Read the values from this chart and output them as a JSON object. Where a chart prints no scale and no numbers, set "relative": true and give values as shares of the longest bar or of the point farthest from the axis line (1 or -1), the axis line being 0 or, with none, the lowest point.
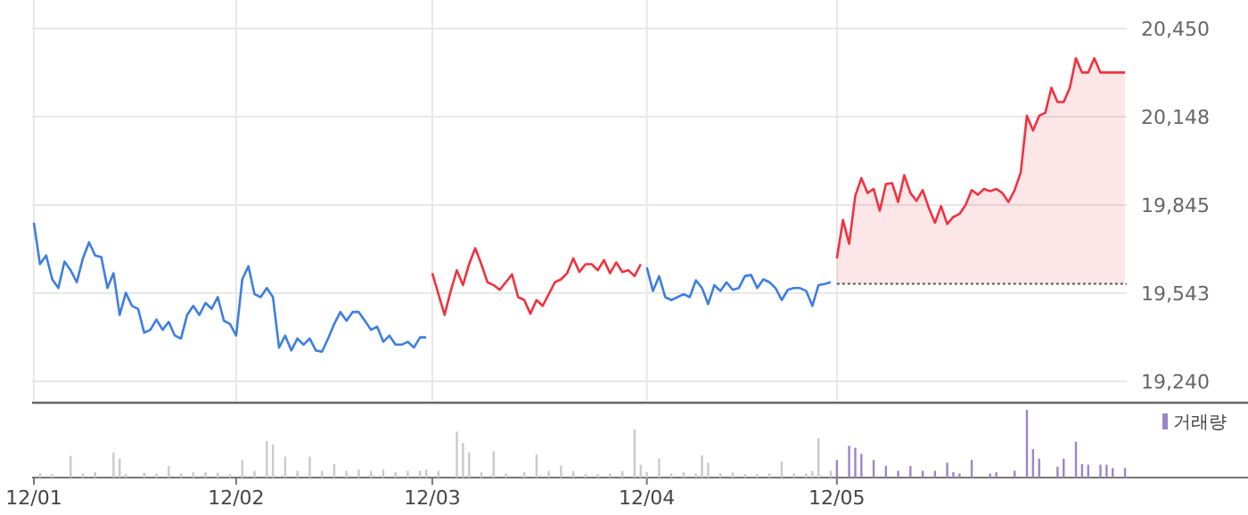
{
  "chart_data": [
    {
      "type": "line",
      "ylim": [
        19173,
        20450
      ],
      "categories": [
        null,
        null,
        null,
        null,
        null,
        null,
        null,
        null,
        null,
        null,
        null,
        null,
        null,
        null,
        null,
        null,
        null,
        null,
        null,
        null,
        null,
        null,
        null,
        null,
        null,
        null,
        null,
        null,
        null,
        null,
        null,
        null,
        null,
        null,
        null,
        null,
        null,
        null,
        null,
        null,
        null,
        null,
        null,
        null,
        null,
        null,
        null,
        null,
        null,
        null,
        null,
        null,
        null,
        null,
        null,
        null,
        null,
        null,
        null,
        null,
        null,
        null,
        null,
        null,
        null,
        null,
        null,
        null,
        null,
        null,
        null,
        null,
        null,
        null,
        null,
        null,
        null,
        null,
        null,
        null,
        null,
        null,
        null,
        null,
        null,
        null,
        null,
        null,
        null,
        null,
        null,
        null,
        null,
        null,
        null,
        null,
        null,
        null,
        null,
        null,
        null,
        null,
        null,
        null,
        null,
        null,
        null,
        null,
        null,
        null,
        null,
        null,
        null,
        null,
        null,
        null,
        null,
        null,
        null,
        null,
        null,
        null,
        null,
        null,
        null,
        null,
        null,
        null,
        null,
        null,
        null,
        null,
        null,
        null,
        null,
        null,
        null,
        null,
        null,
        null,
        null,
        null,
        null,
        null,
        null,
        null,
        null,
        null,
        null,
        null,
        null,
        null,
        null,
        null,
        null,
        null,
        null,
        null,
        null,
        null,
        null,
        null,
        null,
        null,
        null,
        null,
        null,
        null,
        null,
        null,
        null,
        null,
        null,
        null,
        null,
        null,
        null,
        null,
        null
      ],
      "yticks": [
        {
          "value": 19240,
          "label": "19,240"
        },
        {
          "value": 19542.5,
          "label": "19,543"
        },
        {
          "value": 19845,
          "label": "19,845"
        },
        {
          "value": 20147.5,
          "label": "20,148"
        },
        {
          "value": 20450,
          "label": "20,450"
        }
      ],
      "tick_labels": "y",
      "grid": true,
      "ref_lines": [
        {
          "axis": "y",
          "value": 19575,
          "color": "#555555",
          "line_style": "dotted"
        }
      ],
      "series": [
        {
          "color": "#3d7ee0",
          "values": [
            19784,
            19642,
            19672,
            19590,
            19560,
            19651,
            19621,
            19580,
            19662,
            19717,
            19672,
            19666,
            19560,
            19611,
            19468,
            19544,
            19499,
            19489,
            19407,
            19417,
            19452,
            19417,
            19444,
            19397,
            19387,
            19468,
            19499,
            19468,
            19509,
            19489,
            19529,
            19448,
            19437,
            19397,
            19590,
            19635,
            19539,
            19529,
            19560,
            19529,
            19356,
            19397,
            19346,
            19387,
            19366,
            19387,
            19346,
            19342,
            19387,
            19437,
            19478,
            19448,
            19478,
            19478,
            19448,
            19417,
            19428,
            19376,
            19397,
            19366,
            19366,
            19376,
            19356,
            19391,
            19391,
            null,
            null,
            null,
            null,
            null,
            null,
            null,
            null,
            null,
            null,
            null,
            null,
            null,
            null,
            null,
            null,
            null,
            null,
            null,
            null,
            null,
            null,
            null,
            null,
            null,
            null,
            null,
            null,
            null,
            null,
            null,
            null,
            null,
            null,
            null,
            null,
            null,
            null,
            null,
            null,
            null,
            null,
            null,
            null,
            null,
            null,
            null,
            null,
            null,
            null,
            null,
            null,
            null,
            null,
            null,
            null,
            null,
            null,
            null,
            null,
            null,
            null,
            null,
            null,
            null,
            null,
            null,
            null,
            null,
            null,
            null,
            null,
            null,
            null,
            null,
            null,
            null,
            null,
            null,
            null,
            null,
            null,
            null,
            null,
            null,
            null,
            null,
            null,
            null,
            null,
            null,
            null,
            null,
            null,
            null,
            null,
            null,
            null,
            null,
            null,
            null,
            null,
            null,
            null,
            null,
            null,
            null,
            null,
            null,
            null,
            null,
            null,
            null,
            null
          ]
        },
        {
          "color": "#f2313f",
          "values": [
            null,
            null,
            null,
            null,
            null,
            null,
            null,
            null,
            null,
            null,
            null,
            null,
            null,
            null,
            null,
            null,
            null,
            null,
            null,
            null,
            null,
            null,
            null,
            null,
            null,
            null,
            null,
            null,
            null,
            null,
            null,
            null,
            null,
            null,
            null,
            null,
            null,
            null,
            null,
            null,
            null,
            null,
            null,
            null,
            null,
            null,
            null,
            null,
            null,
            null,
            null,
            null,
            null,
            null,
            null,
            null,
            null,
            null,
            null,
            null,
            null,
            null,
            null,
            null,
            null,
            19611,
            19539,
            19468,
            19550,
            19621,
            19570,
            19642,
            19697,
            19642,
            19580,
            19570,
            19554,
            19580,
            19607,
            19529,
            19519,
            19472,
            19519,
            19499,
            19539,
            19580,
            19590,
            19611,
            19662,
            19615,
            19642,
            19642,
            19621,
            19656,
            19611,
            19648,
            19615,
            19621,
            19601,
            19642,
            null,
            null,
            null,
            null,
            null,
            null,
            null,
            null,
            null,
            null,
            null,
            null,
            null,
            null,
            null,
            null,
            null,
            null,
            null,
            null,
            null,
            null,
            null,
            null,
            null,
            null,
            null,
            null,
            null,
            null,
            null,
            null,
            null,
            null,
            null,
            null,
            null,
            null,
            null,
            null,
            null,
            null,
            null,
            null,
            null,
            null,
            null,
            null,
            null,
            null,
            null,
            null,
            null,
            null,
            null,
            null,
            null,
            null,
            null,
            null,
            null,
            null,
            null,
            null,
            null,
            null,
            null,
            null,
            null,
            null,
            null,
            null,
            null,
            null,
            null,
            null,
            null,
            null,
            null
          ]
        },
        {
          "color": "#3d7ee0",
          "values": [
            null,
            null,
            null,
            null,
            null,
            null,
            null,
            null,
            null,
            null,
            null,
            null,
            null,
            null,
            null,
            null,
            null,
            null,
            null,
            null,
            null,
            null,
            null,
            null,
            null,
            null,
            null,
            null,
            null,
            null,
            null,
            null,
            null,
            null,
            null,
            null,
            null,
            null,
            null,
            null,
            null,
            null,
            null,
            null,
            null,
            null,
            null,
            null,
            null,
            null,
            null,
            null,
            null,
            null,
            null,
            null,
            null,
            null,
            null,
            null,
            null,
            null,
            null,
            null,
            null,
            null,
            null,
            null,
            null,
            null,
            null,
            null,
            null,
            null,
            null,
            null,
            null,
            null,
            null,
            null,
            null,
            null,
            null,
            null,
            null,
            null,
            null,
            null,
            null,
            null,
            null,
            null,
            null,
            null,
            null,
            null,
            null,
            null,
            null,
            null,
            19631,
            19550,
            19601,
            19529,
            19519,
            19529,
            19539,
            19529,
            19587,
            19560,
            19505,
            19570,
            19550,
            19580,
            19554,
            19560,
            19601,
            19605,
            19560,
            19590,
            19580,
            19560,
            19519,
            19554,
            19560,
            19560,
            19550,
            19499,
            19570,
            19574,
            19580,
            null,
            null,
            null,
            null,
            null,
            null,
            null,
            null,
            null,
            null,
            null,
            null,
            null,
            null,
            null,
            null,
            null,
            null,
            null,
            null,
            null,
            null,
            null,
            null,
            null,
            null,
            null,
            null,
            null,
            null,
            null,
            null,
            null,
            null,
            null,
            null,
            null,
            null,
            null,
            null,
            null,
            null,
            null,
            null,
            null,
            null,
            null,
            null
          ]
        },
        {
          "type": "area",
          "color": "#f2313f",
          "values": [
            null,
            null,
            null,
            null,
            null,
            null,
            null,
            null,
            null,
            null,
            null,
            null,
            null,
            null,
            null,
            null,
            null,
            null,
            null,
            null,
            null,
            null,
            null,
            null,
            null,
            null,
            null,
            null,
            null,
            null,
            null,
            null,
            null,
            null,
            null,
            null,
            null,
            null,
            null,
            null,
            null,
            null,
            null,
            null,
            null,
            null,
            null,
            null,
            null,
            null,
            null,
            null,
            null,
            null,
            null,
            null,
            null,
            null,
            null,
            null,
            null,
            null,
            null,
            null,
            null,
            null,
            null,
            null,
            null,
            null,
            null,
            null,
            null,
            null,
            null,
            null,
            null,
            null,
            null,
            null,
            null,
            null,
            null,
            null,
            null,
            null,
            null,
            null,
            null,
            null,
            null,
            null,
            null,
            null,
            null,
            null,
            null,
            null,
            null,
            null,
            null,
            null,
            null,
            null,
            null,
            null,
            null,
            null,
            null,
            null,
            null,
            null,
            null,
            null,
            null,
            null,
            null,
            null,
            null,
            null,
            null,
            null,
            null,
            null,
            null,
            null,
            null,
            null,
            null,
            null,
            null,
            19662,
            19794,
            19712,
            19876,
            19937,
            19886,
            19900,
            19825,
            19917,
            19920,
            19855,
            19947,
            19886,
            19859,
            19896,
            19835,
            19784,
            19841,
            19780,
            19804,
            19814,
            19845,
            19896,
            19880,
            19900,
            19892,
            19900,
            19886,
            19855,
            19896,
            19957,
            20151,
            20100,
            20151,
            20161,
            20247,
            20198,
            20198,
            20247,
            20348,
            20299,
            20299,
            20348,
            20299,
            20299,
            20299,
            20299,
            20299
          ]
        }
      ]
    },
    {
      "type": "bar",
      "relative": true,
      "categories": [
        "12/01",
        null,
        null,
        null,
        null,
        null,
        null,
        null,
        null,
        null,
        null,
        null,
        null,
        null,
        null,
        null,
        null,
        null,
        null,
        null,
        null,
        null,
        null,
        null,
        null,
        null,
        null,
        null,
        null,
        null,
        null,
        null,
        null,
        "12/02",
        null,
        null,
        null,
        null,
        null,
        null,
        null,
        null,
        null,
        null,
        null,
        null,
        null,
        null,
        null,
        null,
        null,
        null,
        null,
        null,
        null,
        null,
        null,
        null,
        null,
        null,
        null,
        null,
        null,
        null,
        null,
        "12/03",
        null,
        null,
        null,
        null,
        null,
        null,
        null,
        null,
        null,
        null,
        null,
        null,
        null,
        null,
        null,
        null,
        null,
        null,
        null,
        null,
        null,
        null,
        null,
        null,
        null,
        null,
        null,
        null,
        null,
        null,
        null,
        null,
        null,
        null,
        "12/04",
        null,
        null,
        null,
        null,
        null,
        null,
        null,
        null,
        null,
        null,
        null,
        null,
        null,
        null,
        null,
        null,
        null,
        null,
        null,
        null,
        null,
        null,
        null,
        null,
        null,
        null,
        null,
        null,
        null,
        null,
        "12/05",
        null,
        null,
        null,
        null,
        null,
        null,
        null,
        null,
        null,
        null,
        null,
        null,
        null,
        null,
        null,
        null,
        null,
        null,
        null,
        null,
        null,
        null,
        null,
        null,
        null,
        null,
        null,
        null,
        null,
        null,
        null,
        null,
        null,
        null,
        null,
        null,
        null,
        null,
        null,
        null,
        null,
        null,
        null,
        null,
        null,
        null,
        null
      ],
      "tick_labels": "x",
      "legend": "top right",
      "series": [
        {
          "color": "#c8cacd",
          "values": [
            null,
            0.06,
            null,
            0.05,
            null,
            null,
            0.32,
            null,
            0.06,
            null,
            0.08,
            null,
            null,
            0.37,
            0.28,
            0.05,
            null,
            null,
            0.07,
            null,
            0.06,
            null,
            0.17,
            null,
            0.06,
            null,
            0.08,
            null,
            0.08,
            null,
            0.07,
            null,
            0.05,
            null,
            0.26,
            null,
            0.1,
            null,
            0.54,
            0.49,
            null,
            0.31,
            null,
            0.1,
            null,
            0.31,
            null,
            0.1,
            null,
            0.2,
            null,
            0.1,
            null,
            0.12,
            null,
            0.1,
            null,
            0.12,
            null,
            0.08,
            null,
            0.1,
            null,
            0.1,
            0.12,
            null,
            0.1,
            null,
            null,
            0.68,
            0.51,
            0.37,
            null,
            0.08,
            null,
            0.39,
            null,
            0.06,
            null,
            null,
            0.08,
            null,
            0.34,
            null,
            0.1,
            null,
            0.18,
            null,
            0.1,
            null,
            0.05,
            null,
            0.05,
            null,
            0.06,
            null,
            0.1,
            null,
            0.71,
            0.19,
            0.08,
            null,
            0.28,
            null,
            0.06,
            null,
            0.08,
            null,
            0.06,
            0.33,
            0.22,
            null,
            0.06,
            null,
            0.08,
            null,
            0.05,
            null,
            0.05,
            null,
            0.06,
            null,
            0.24,
            null,
            0.06,
            null,
            0.06,
            0.1,
            0.58,
            null,
            0.1,
            null,
            null,
            null,
            null,
            null,
            null,
            null,
            null,
            null,
            null,
            null,
            null,
            null,
            null,
            null,
            null,
            null,
            null,
            null,
            null,
            null,
            null,
            null,
            null,
            null,
            null,
            null,
            null,
            null,
            null,
            null,
            null,
            null,
            null,
            null,
            null,
            null,
            null,
            null,
            null,
            null,
            null,
            null,
            null,
            null,
            null,
            null,
            null
          ]
        },
        {
          "name": "거래량",
          "color": "#9b86c8",
          "values": [
            null,
            null,
            null,
            null,
            null,
            null,
            null,
            null,
            null,
            null,
            null,
            null,
            null,
            null,
            null,
            null,
            null,
            null,
            null,
            null,
            null,
            null,
            null,
            null,
            null,
            null,
            null,
            null,
            null,
            null,
            null,
            null,
            null,
            null,
            null,
            null,
            null,
            null,
            null,
            null,
            null,
            null,
            null,
            null,
            null,
            null,
            null,
            null,
            null,
            null,
            null,
            null,
            null,
            null,
            null,
            null,
            null,
            null,
            null,
            null,
            null,
            null,
            null,
            null,
            null,
            null,
            null,
            null,
            null,
            null,
            null,
            null,
            null,
            null,
            null,
            null,
            null,
            null,
            null,
            null,
            null,
            null,
            null,
            null,
            null,
            null,
            null,
            null,
            null,
            null,
            null,
            null,
            null,
            null,
            null,
            null,
            null,
            null,
            null,
            null,
            null,
            null,
            null,
            null,
            null,
            null,
            null,
            null,
            null,
            null,
            null,
            null,
            null,
            null,
            null,
            null,
            null,
            null,
            null,
            null,
            null,
            null,
            null,
            null,
            null,
            null,
            null,
            null,
            null,
            null,
            null,
            0.26,
            null,
            0.47,
            0.44,
            0.35,
            null,
            0.26,
            null,
            0.17,
            null,
            0.1,
            null,
            0.17,
            null,
            0.1,
            null,
            0.1,
            null,
            0.22,
            0.08,
            0.06,
            null,
            0.26,
            null,
            null,
            0.06,
            0.08,
            null,
            null,
            0.1,
            null,
            1,
            0.42,
            0.28,
            null,
            null,
            0.16,
            0.28,
            null,
            0.53,
            0.2,
            0.19,
            null,
            0.19,
            0.19,
            0.14,
            null,
            0.14
          ]
        }
      ]
    }
  ]
}
